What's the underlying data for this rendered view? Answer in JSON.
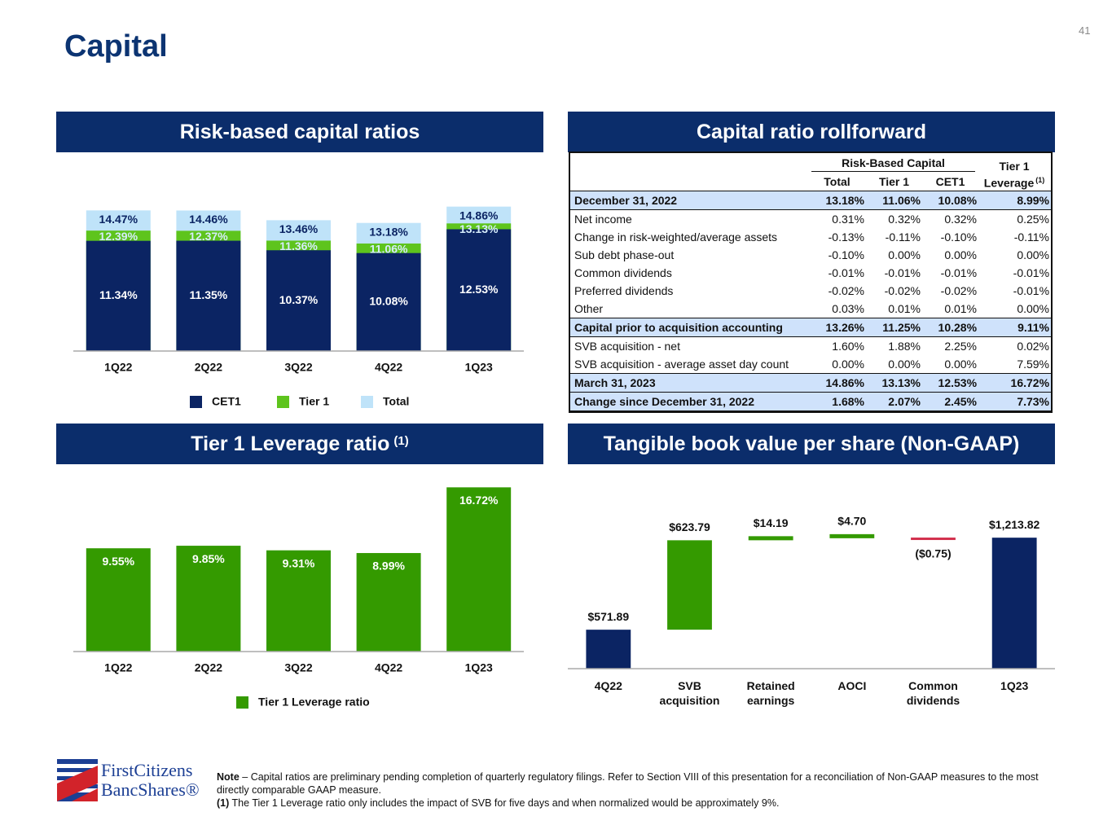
{
  "page_number": "41",
  "title": "Capital",
  "chart_data": [
    {
      "type": "overlapping_bar",
      "title": "Risk-based capital ratios",
      "categories": [
        "1Q22",
        "2Q22",
        "3Q22",
        "4Q22",
        "1Q23"
      ],
      "series": [
        {
          "name": "CET1",
          "color": "#0b2463",
          "values": [
            11.34,
            11.35,
            10.37,
            10.08,
            12.53
          ],
          "value_labels": [
            "11.34%",
            "11.35%",
            "10.37%",
            "10.08%",
            "12.53%"
          ]
        },
        {
          "name": "Tier 1",
          "color": "#5ec41d",
          "values": [
            12.39,
            12.37,
            11.36,
            11.06,
            13.13
          ],
          "value_labels": [
            "12.39%",
            "12.37%",
            "11.36%",
            "11.06%",
            "13.13%"
          ]
        },
        {
          "name": "Total",
          "color": "#bfe3f9",
          "values": [
            14.47,
            14.46,
            13.46,
            13.18,
            14.86
          ],
          "value_labels": [
            "14.47%",
            "14.46%",
            "13.46%",
            "13.18%",
            "14.86%"
          ]
        }
      ],
      "ylim": [
        0,
        15
      ]
    },
    {
      "type": "bar",
      "title": "Tier 1 Leverage ratio",
      "title_note": "(1)",
      "categories": [
        "1Q22",
        "2Q22",
        "3Q22",
        "4Q22",
        "1Q23"
      ],
      "series": [
        {
          "name": "Tier 1 Leverage ratio",
          "color": "#349a00",
          "values": [
            9.55,
            9.85,
            9.31,
            8.99,
            16.72
          ],
          "value_labels": [
            "9.55%",
            "9.85%",
            "9.31%",
            "8.99%",
            "16.72%"
          ]
        }
      ],
      "ylim": [
        -2.6,
        18
      ]
    },
    {
      "type": "waterfall",
      "title": "Tangible book value per share (Non-GAAP)",
      "categories": [
        "4Q22",
        "SVB acquisition",
        "Retained earnings",
        "AOCI",
        "Common dividends",
        "1Q23"
      ],
      "values": [
        571.89,
        623.79,
        14.19,
        4.7,
        -0.75,
        1213.82
      ],
      "value_labels": [
        "$571.89",
        "$623.79",
        "$14.19",
        "$4.70",
        "($0.75)",
        "$1,213.82"
      ],
      "measure": [
        "absolute",
        "relative",
        "relative",
        "relative",
        "relative",
        "total"
      ],
      "colors": {
        "total": "#0b2463",
        "increase": "#349a00",
        "decrease": "#d2304d"
      },
      "ylim": [
        300,
        1300
      ]
    }
  ],
  "table": {
    "title": "Capital ratio rollforward",
    "group_header": "Risk-Based Capital",
    "columns": [
      "Total",
      "Tier 1",
      "CET1"
    ],
    "last_column": {
      "text": "Tier 1 Leverage",
      "note": "(1)"
    },
    "rows": [
      {
        "label": "December 31, 2022",
        "cells": [
          "13.18%",
          "11.06%",
          "10.08%",
          "8.99%"
        ],
        "highlight": true
      },
      {
        "label": "Net income",
        "cells": [
          "0.31%",
          "0.32%",
          "0.32%",
          "0.25%"
        ],
        "highlight": false
      },
      {
        "label": "Change in risk-weighted/average assets",
        "cells": [
          "-0.13%",
          "-0.11%",
          "-0.10%",
          "-0.11%"
        ],
        "highlight": false
      },
      {
        "label": "Sub debt phase-out",
        "cells": [
          "-0.10%",
          "0.00%",
          "0.00%",
          "0.00%"
        ],
        "highlight": false
      },
      {
        "label": "Common dividends",
        "cells": [
          "-0.01%",
          "-0.01%",
          "-0.01%",
          "-0.01%"
        ],
        "highlight": false
      },
      {
        "label": "Preferred dividends",
        "cells": [
          "-0.02%",
          "-0.02%",
          "-0.02%",
          "-0.01%"
        ],
        "highlight": false
      },
      {
        "label": "Other",
        "cells": [
          "0.03%",
          "0.01%",
          "0.01%",
          "0.00%"
        ],
        "highlight": false
      },
      {
        "label": "Capital prior to acquisition accounting",
        "cells": [
          "13.26%",
          "11.25%",
          "10.28%",
          "9.11%"
        ],
        "highlight": true
      },
      {
        "label": "SVB acquisition - net",
        "cells": [
          "1.60%",
          "1.88%",
          "2.25%",
          "0.02%"
        ],
        "highlight": false
      },
      {
        "label": "SVB acquisition - average asset day count",
        "cells": [
          "0.00%",
          "0.00%",
          "0.00%",
          "7.59%"
        ],
        "highlight": false
      },
      {
        "label": "March 31, 2023",
        "cells": [
          "14.86%",
          "13.13%",
          "12.53%",
          "16.72%"
        ],
        "highlight": true
      },
      {
        "label": "Change since December 31, 2022",
        "cells": [
          "1.68%",
          "2.07%",
          "2.45%",
          "7.73%"
        ],
        "highlight": true
      }
    ]
  },
  "logo": {
    "line1": "FirstCitizens",
    "line2": "BancShares®"
  },
  "notes": [
    {
      "label": "Note",
      "text": "– Capital ratios are preliminary pending completion of quarterly regulatory filings. Refer to Section VIII of this presentation for a reconciliation of Non-GAAP measures to the most directly comparable GAAP measure."
    },
    {
      "label": "(1)",
      "text": "The Tier 1 Leverage ratio only includes the impact of SVB for five days and when normalized would be approximately 9%."
    }
  ]
}
